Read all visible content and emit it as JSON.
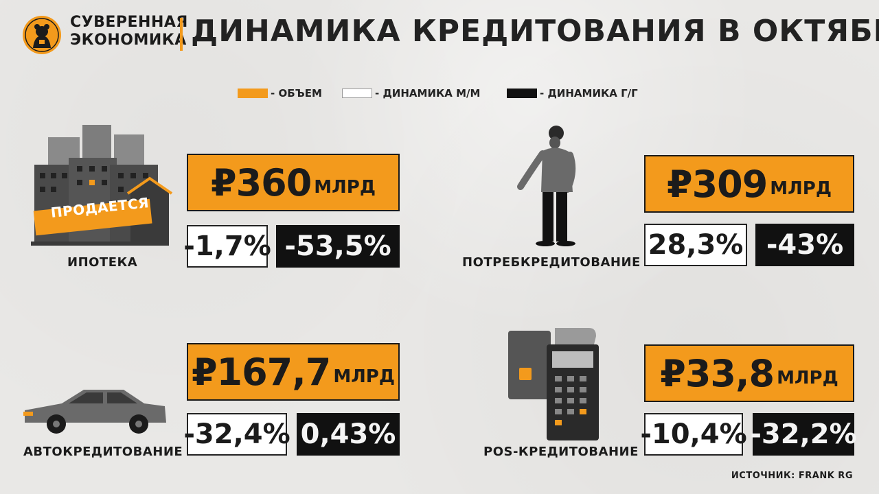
{
  "brand": {
    "line1": "СУВЕРЕННАЯ",
    "line2": "ЭКОНОМИКА"
  },
  "title": "ДИНАМИКА КРЕДИТОВАНИЯ В ОКТЯБРЕ",
  "legend": [
    {
      "label": "- ОБЪЕМ",
      "color": "#f39a1c"
    },
    {
      "label": "- ДИНАМИКА М/М",
      "color": "#ffffff"
    },
    {
      "label": "- ДИНАМИКА Г/Г",
      "color": "#111111"
    }
  ],
  "segments": {
    "mortgage": {
      "label": "ИПОТЕКА",
      "volume": "₽360",
      "unit": "МЛРД",
      "mm": "-1,7%",
      "yy": "-53,5%",
      "banner": "ПРОДАЕТСЯ"
    },
    "consumer": {
      "label": "ПОТРЕБКРЕДИТОВАНИЕ",
      "volume": "₽309",
      "unit": "МЛРД",
      "mm": "28,3%",
      "yy": "-43%"
    },
    "auto": {
      "label": "АВТОКРЕДИТОВАНИЕ",
      "volume": "₽167,7",
      "unit": "МЛРД",
      "mm": "-32,4%",
      "yy": "0,43%"
    },
    "pos": {
      "label": "POS-КРЕДИТОВАНИЕ",
      "volume": "₽33,8",
      "unit": "МЛРД",
      "mm": "-10,4%",
      "yy": "-32,2%"
    }
  },
  "source": "ИСТОЧНИК: FRANK RG",
  "colors": {
    "accent": "#f39a1c",
    "dark": "#111111",
    "background": "#e9e8e6"
  }
}
